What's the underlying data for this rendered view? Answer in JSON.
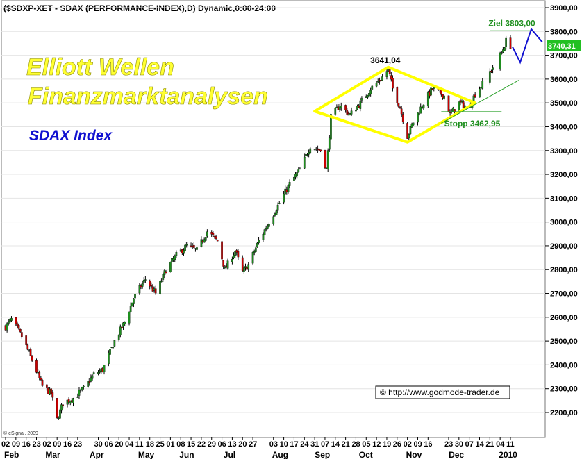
{
  "header": "($SDXP-XET - SDAX (PERFORMANCE-INDEX),D) Dynamic,0:00-24:00",
  "overlay": {
    "title_line1": "Elliott Wellen",
    "title_line2": "Finanzmarktanalysen",
    "subtitle": "SDAX Index",
    "copyright": "© http://www.godmode-trader.de",
    "esignal": "© eSignal, 2009"
  },
  "chart_data": {
    "type": "candlestick",
    "title": "($SDXP-XET - SDAX (PERFORMANCE-INDEX),D) Dynamic,0:00-24:00",
    "x_range": [
      "2009-02-02",
      "2010-01-11"
    ],
    "ylim": [
      2150,
      3950
    ],
    "y_ticks": [
      "3900,00",
      "3800,00",
      "3700,00",
      "3600,00",
      "3500,00",
      "3400,00",
      "3300,00",
      "3200,00",
      "3100,00",
      "3000,00",
      "2900,00",
      "2800,00",
      "2700,00",
      "2600,00",
      "2500,00",
      "2400,00",
      "2300,00",
      "2200,00"
    ],
    "y_tick_values": [
      3900,
      3800,
      3700,
      3600,
      3500,
      3400,
      3300,
      3200,
      3100,
      3000,
      2900,
      2800,
      2700,
      2600,
      2500,
      2400,
      2300,
      2200
    ],
    "date_ticks": [
      "02",
      "09",
      "16",
      "23",
      "02",
      "09",
      "16",
      "23",
      "30",
      "06",
      "20",
      "04",
      "11",
      "18",
      "25",
      "01",
      "08",
      "15",
      "22",
      "29",
      "06",
      "13",
      "20",
      "27",
      "03",
      "10",
      "17",
      "24",
      "31",
      "07",
      "14",
      "21",
      "28",
      "05",
      "12",
      "19",
      "26",
      "02",
      "09",
      "16",
      "23",
      "30",
      "07",
      "14",
      "21",
      "04",
      "11"
    ],
    "months": [
      "Feb",
      "Mar",
      "Apr",
      "May",
      "Jun",
      "Jul",
      "Aug",
      "Sep",
      "Oct",
      "Nov",
      "Dec",
      "2010"
    ],
    "last_price": 3740.31,
    "last_price_label": "3740,31",
    "anchors": [
      [
        "2009-02-02",
        2560
      ],
      [
        "2009-02-06",
        2590
      ],
      [
        "2009-02-13",
        2520
      ],
      [
        "2009-02-20",
        2420
      ],
      [
        "2009-02-27",
        2310
      ],
      [
        "2009-03-05",
        2280
      ],
      [
        "2009-03-09",
        2170
      ],
      [
        "2009-03-13",
        2240
      ],
      [
        "2009-03-20",
        2260
      ],
      [
        "2009-03-27",
        2300
      ],
      [
        "2009-04-03",
        2360
      ],
      [
        "2009-04-09",
        2380
      ],
      [
        "2009-04-17",
        2500
      ],
      [
        "2009-04-24",
        2580
      ],
      [
        "2009-04-30",
        2680
      ],
      [
        "2009-05-08",
        2760
      ],
      [
        "2009-05-15",
        2700
      ],
      [
        "2009-05-22",
        2800
      ],
      [
        "2009-05-29",
        2860
      ],
      [
        "2009-06-05",
        2900
      ],
      [
        "2009-06-12",
        2880
      ],
      [
        "2009-06-19",
        2960
      ],
      [
        "2009-06-26",
        2920
      ],
      [
        "2009-07-01",
        2800
      ],
      [
        "2009-07-08",
        2880
      ],
      [
        "2009-07-13",
        2790
      ],
      [
        "2009-07-17",
        2820
      ],
      [
        "2009-07-24",
        2920
      ],
      [
        "2009-07-31",
        3000
      ],
      [
        "2009-08-07",
        3080
      ],
      [
        "2009-08-14",
        3160
      ],
      [
        "2009-08-21",
        3220
      ],
      [
        "2009-08-28",
        3320
      ],
      [
        "2009-09-04",
        3300
      ],
      [
        "2009-09-08",
        3220
      ],
      [
        "2009-09-11",
        3440
      ],
      [
        "2009-09-17",
        3490
      ],
      [
        "2009-09-24",
        3450
      ],
      [
        "2009-10-01",
        3500
      ],
      [
        "2009-10-08",
        3560
      ],
      [
        "2009-10-15",
        3600
      ],
      [
        "2009-10-20",
        3641
      ],
      [
        "2009-10-23",
        3560
      ],
      [
        "2009-10-28",
        3480
      ],
      [
        "2009-11-02",
        3360
      ],
      [
        "2009-11-06",
        3420
      ],
      [
        "2009-11-12",
        3490
      ],
      [
        "2009-11-19",
        3560
      ],
      [
        "2009-11-27",
        3530
      ],
      [
        "2009-12-01",
        3450
      ],
      [
        "2009-12-07",
        3500
      ],
      [
        "2009-12-14",
        3480
      ],
      [
        "2009-12-18",
        3540
      ],
      [
        "2009-12-23",
        3580
      ],
      [
        "2009-12-30",
        3650
      ],
      [
        "2010-01-05",
        3710
      ],
      [
        "2010-01-08",
        3760
      ],
      [
        "2010-01-11",
        3740
      ]
    ],
    "annotations": {
      "top_label": "3641,04",
      "target_label": "Ziel 3803,00",
      "target_value": 3803.0,
      "stop_label": "Stopp 3462,95",
      "stop_value": 3462.95
    }
  },
  "colors": {
    "up": "#1f8f1f",
    "down": "#cc0000",
    "diamond": "#ffff00",
    "trend": "#2aa02a",
    "projection": "#1010d0",
    "target_text": "#1f8f1f",
    "stop_text": "#1f8f1f",
    "last_bg": "#22c022"
  }
}
